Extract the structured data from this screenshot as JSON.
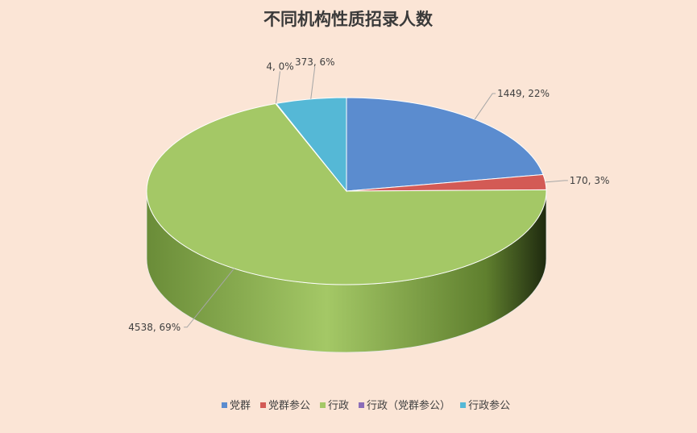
{
  "chart_data": {
    "type": "pie",
    "title": "不同机构性质招录人数",
    "categories": [
      "党群",
      "党群参公",
      "行政",
      "行政（党群参公）",
      "行政参公"
    ],
    "values": [
      1449,
      170,
      4538,
      4,
      373
    ],
    "percent_labels": [
      "22%",
      "3%",
      "69%",
      "0%",
      "6%"
    ],
    "data_labels": [
      "1449, 22%",
      "170, 3%",
      "4538, 69%",
      "4, 0%",
      "373, 6%"
    ],
    "colors": [
      "#5b8ccf",
      "#d35a55",
      "#a4c866",
      "#8a6cb8",
      "#55b8d6"
    ],
    "legend_position": "bottom",
    "style": "3d"
  }
}
